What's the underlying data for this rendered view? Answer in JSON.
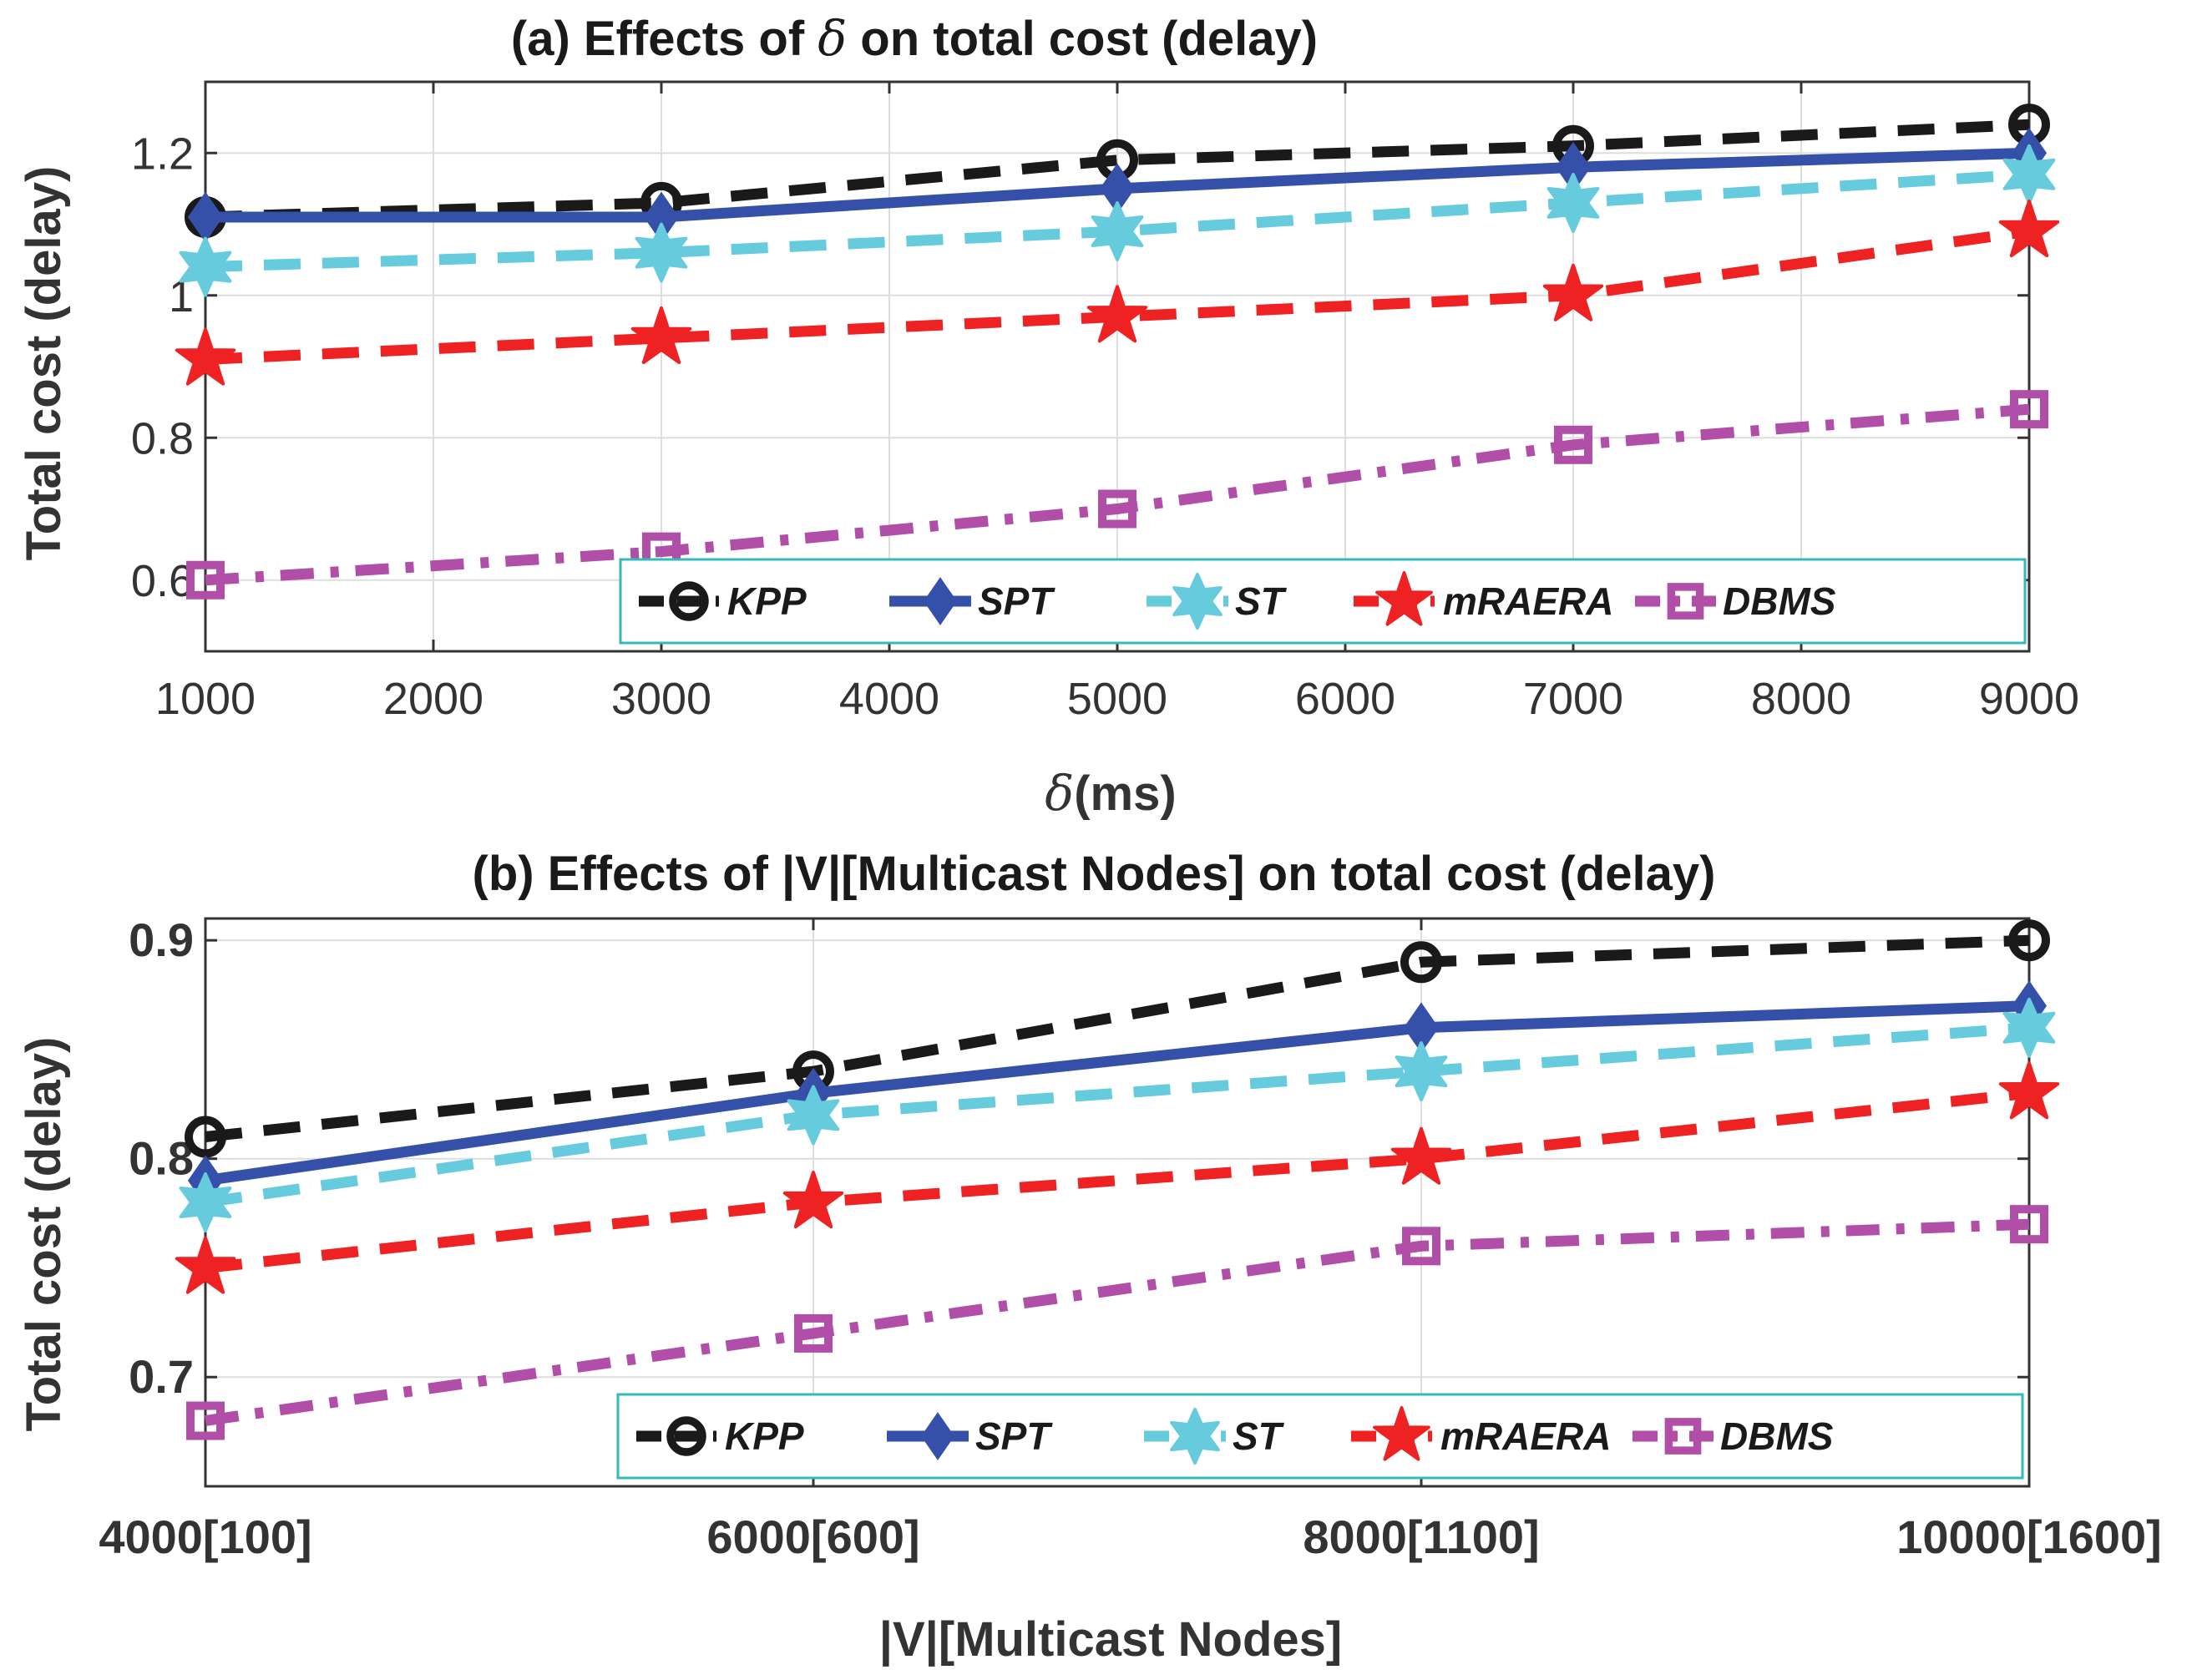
{
  "chart_data": [
    {
      "type": "line",
      "title_prefix": "(a) Effects of ",
      "title_symbol": "δ",
      "title_suffix": " on total cost (delay)",
      "xlabel_symbol": "δ",
      "xlabel_unit": "(ms)",
      "ylabel": "Total cost (delay)",
      "xlim": [
        1000,
        9000
      ],
      "ylim": [
        0.5,
        1.3
      ],
      "xticks": [
        "1000",
        "2000",
        "3000",
        "4000",
        "5000",
        "6000",
        "7000",
        "8000",
        "9000"
      ],
      "xtick_values": [
        1000,
        2000,
        3000,
        4000,
        5000,
        6000,
        7000,
        8000,
        9000
      ],
      "yticks": [
        "0.6",
        "0.8",
        "1",
        "1.2"
      ],
      "ytick_values": [
        0.6,
        0.8,
        1.0,
        1.2
      ],
      "grid": true,
      "legend_position": "bottom-right",
      "x": [
        1000,
        3000,
        5000,
        7000,
        9000
      ],
      "series": [
        {
          "name": "KPP",
          "color": "#1a1a1a",
          "dash": "dashed",
          "marker": "circle",
          "values": [
            1.11,
            1.13,
            1.19,
            1.21,
            1.24
          ]
        },
        {
          "name": "SPT",
          "color": "#3550a8",
          "dash": "solid",
          "marker": "diamond",
          "values": [
            1.11,
            1.11,
            1.15,
            1.18,
            1.2
          ]
        },
        {
          "name": "ST",
          "color": "#66ccdd",
          "dash": "dashed",
          "marker": "hexagram",
          "values": [
            1.04,
            1.06,
            1.09,
            1.13,
            1.17
          ]
        },
        {
          "name": "mRAERA",
          "color": "#ee2222",
          "dash": "dashed",
          "marker": "star",
          "values": [
            0.91,
            0.94,
            0.97,
            1.0,
            1.09
          ]
        },
        {
          "name": "DBMS",
          "color": "#b04ea8",
          "dash": "dashdot",
          "marker": "square",
          "values": [
            0.6,
            0.64,
            0.7,
            0.79,
            0.84
          ]
        }
      ]
    },
    {
      "type": "line",
      "title": "(b) Effects of |V|[Multicast Nodes] on total cost (delay)",
      "xlabel": "|V|[Multicast Nodes]",
      "ylabel": "Total cost (delay)",
      "categories": [
        "4000[100]",
        "6000[600]",
        "8000[1100]",
        "10000[1600]"
      ],
      "ylim": [
        0.65,
        0.91
      ],
      "yticks": [
        "0.7",
        "0.8",
        "0.9"
      ],
      "ytick_values": [
        0.7,
        0.8,
        0.9
      ],
      "grid": true,
      "legend_position": "bottom-right",
      "series": [
        {
          "name": "KPP",
          "color": "#1a1a1a",
          "dash": "dashed",
          "marker": "circle",
          "values": [
            0.81,
            0.84,
            0.89,
            0.9
          ]
        },
        {
          "name": "SPT",
          "color": "#3550a8",
          "dash": "solid",
          "marker": "diamond",
          "values": [
            0.79,
            0.83,
            0.86,
            0.87
          ]
        },
        {
          "name": "ST",
          "color": "#66ccdd",
          "dash": "dashed",
          "marker": "hexagram",
          "values": [
            0.78,
            0.82,
            0.84,
            0.86
          ]
        },
        {
          "name": "mRAERA",
          "color": "#ee2222",
          "dash": "dashed",
          "marker": "star",
          "values": [
            0.75,
            0.78,
            0.8,
            0.83
          ]
        },
        {
          "name": "DBMS",
          "color": "#b04ea8",
          "dash": "dashdot",
          "marker": "square",
          "values": [
            0.68,
            0.72,
            0.76,
            0.77
          ]
        }
      ]
    }
  ]
}
